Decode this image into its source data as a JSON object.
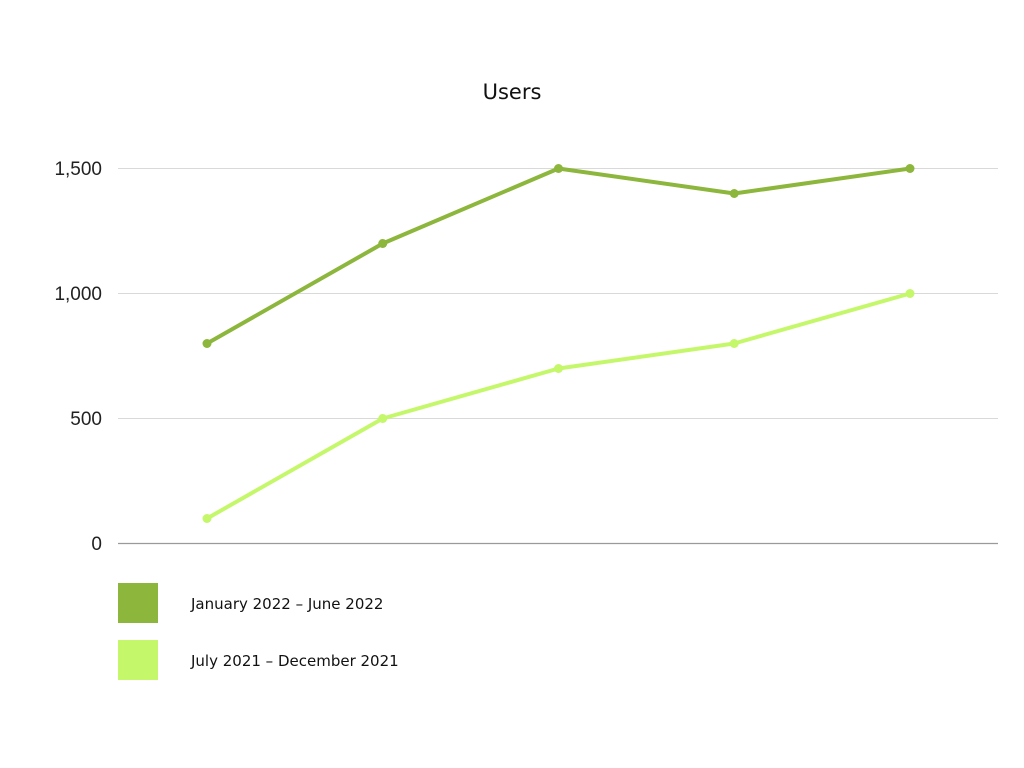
{
  "chart_data": {
    "type": "line",
    "title": "Users",
    "xlabel": "",
    "ylabel": "",
    "x": [
      1,
      2,
      3,
      4,
      5
    ],
    "ylim": [
      0,
      1500
    ],
    "yticks": [
      0,
      500,
      1000,
      1500
    ],
    "ytick_labels": [
      "0",
      "500",
      "1,000",
      "1,500"
    ],
    "grid": true,
    "legend_position": "bottom-left",
    "series": [
      {
        "name": "January 2022 – June 2022",
        "color": "#8cb63c",
        "values": [
          800,
          1200,
          1500,
          1400,
          1500
        ]
      },
      {
        "name": "July 2021 – December 2021",
        "color": "#c5f76b",
        "values": [
          100,
          500,
          700,
          800,
          1000
        ]
      }
    ]
  }
}
